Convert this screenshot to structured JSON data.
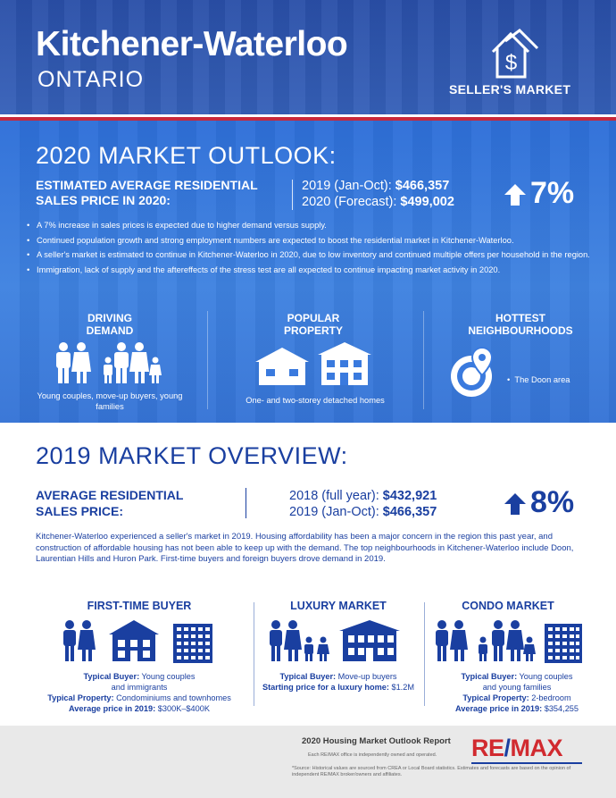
{
  "header": {
    "title": "Kitchener-Waterloo",
    "subtitle": "ONTARIO",
    "badge": "SELLER'S MARKET",
    "icon": "house-dollar-icon"
  },
  "outlook": {
    "title": "2020 MARKET OUTLOOK:",
    "label": "ESTIMATED AVERAGE RESIDENTIAL SALES PRICE IN 2020:",
    "row1_label": "2019 (Jan-Oct):",
    "row1_value": "$466,357",
    "row2_label": "2020 (Forecast):",
    "row2_value": "$499,002",
    "change": "7%",
    "bullets": [
      "A 7% increase in sales prices is expected due to higher demand versus supply.",
      "Continued population growth and strong employment numbers are expected to boost the residential market in Kitchener-Waterloo.",
      "A seller's market is estimated to continue in Kitchener-Waterloo in 2020, due to low inventory and continued multiple offers per household in the region.",
      "Immigration, lack of supply and the aftereffects of the stress test are all expected to continue impacting market activity in 2020."
    ],
    "columns": [
      {
        "heading": "DRIVING DEMAND",
        "caption": "Young couples, move-up buyers, young families"
      },
      {
        "heading": "POPULAR PROPERTY",
        "caption": "One- and two-storey detached homes"
      },
      {
        "heading": "HOTTEST NEIGHBOURHOODS",
        "caption": "The Doon area"
      }
    ]
  },
  "overview": {
    "title": "2019 MARKET OVERVIEW:",
    "label_line1": "AVERAGE RESIDENTIAL",
    "label_line2": "SALES PRICE:",
    "row1_label": "2018 (full year):",
    "row1_value": "$432,921",
    "row2_label": "2019 (Jan-Oct):",
    "row2_value": "$466,357",
    "change": "8%",
    "paragraph": "Kitchener-Waterloo experienced a seller's market in 2019. Housing affordability has been a major concern in the region this past year, and construction of affordable housing has not been able to keep up with the demand. The top neighbourhoods in Kitchener-Waterloo include Doon, Laurentian Hills and Huron Park. First-time buyers and foreign buyers drove demand in 2019."
  },
  "markets": [
    {
      "heading": "FIRST-TIME BUYER",
      "l1_key": "Typical Buyer:",
      "l1_val": " Young couples",
      "l2": "and immigrants",
      "l3_key": "Typical Property:",
      "l3_val": " Condominiums and townhomes",
      "l4_key": "Average price in 2019:",
      "l4_val": " $300K–$400K"
    },
    {
      "heading": "LUXURY MARKET",
      "l1_key": "Typical Buyer:",
      "l1_val": " Move-up buyers",
      "l2_key": "Starting price for a luxury home:",
      "l2_val": " $1.2M"
    },
    {
      "heading": "CONDO MARKET",
      "l1_key": "Typical Buyer:",
      "l1_val": " Young couples",
      "l2": "and young families",
      "l3_key": "Typical Property:",
      "l3_val": " 2-bedroom",
      "l4_key": "Average price in 2019:",
      "l4_val": " $354,255"
    }
  ],
  "footer": {
    "title": "2020 Housing Market Outlook Report",
    "note1": "Each RE/MAX office is independently owned and operated.",
    "note2": "*Source: Historical values are sourced from CREA or Local Board statistics. Estimates and forecasts are based on the opinion of independent RE/MAX broker/owners and affiliates.",
    "logo_r": "RE",
    "logo_slash": "/",
    "logo_max": "MAX"
  },
  "colors": {
    "brand_blue": "#1a3fa0",
    "panel_blue": "#3a7ade",
    "brand_red": "#d12a2f"
  }
}
